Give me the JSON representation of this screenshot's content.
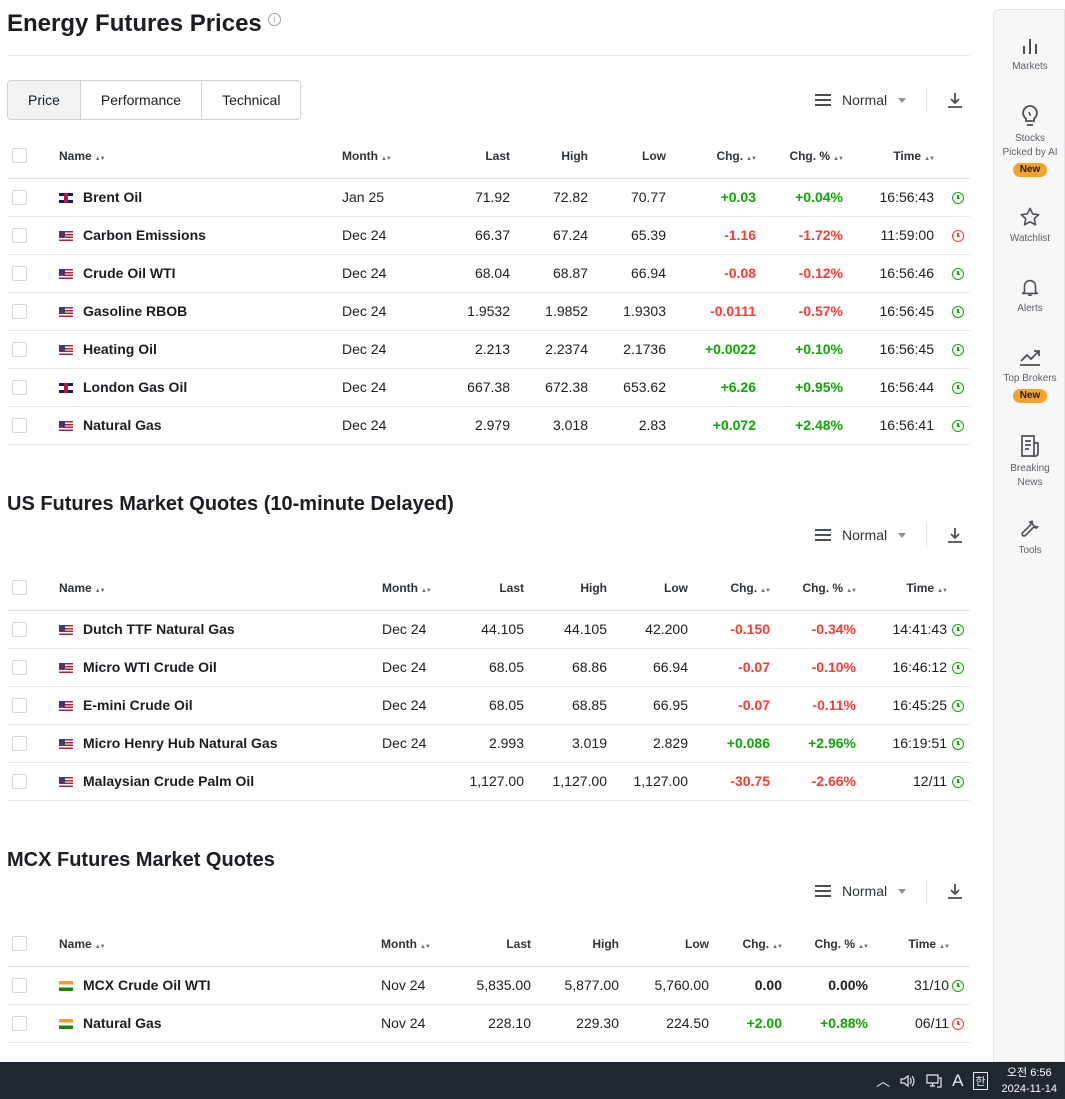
{
  "page_title": "Energy Futures Prices",
  "tabs": [
    {
      "label": "Price",
      "active": true
    },
    {
      "label": "Performance",
      "active": false
    },
    {
      "label": "Technical",
      "active": false
    }
  ],
  "view_label": "Normal",
  "columns": {
    "name": "Name",
    "month": "Month",
    "last": "Last",
    "high": "High",
    "low": "Low",
    "chg": "Chg.",
    "chg_pct": "Chg. %",
    "time": "Time"
  },
  "energy_table": [
    {
      "flag": "gb",
      "name": "Brent Oil",
      "month": "Jan 25",
      "last": "71.92",
      "high": "72.82",
      "low": "70.77",
      "chg": "+0.03",
      "chg_pct": "+0.04%",
      "time": "16:56:43",
      "dir": "pos",
      "status": "open"
    },
    {
      "flag": "us",
      "name": "Carbon Emissions",
      "month": "Dec 24",
      "last": "66.37",
      "high": "67.24",
      "low": "65.39",
      "chg": "-1.16",
      "chg_pct": "-1.72%",
      "time": "11:59:00",
      "dir": "neg",
      "status": "closed"
    },
    {
      "flag": "us",
      "name": "Crude Oil WTI",
      "month": "Dec 24",
      "last": "68.04",
      "high": "68.87",
      "low": "66.94",
      "chg": "-0.08",
      "chg_pct": "-0.12%",
      "time": "16:56:46",
      "dir": "neg",
      "status": "open"
    },
    {
      "flag": "us",
      "name": "Gasoline RBOB",
      "month": "Dec 24",
      "last": "1.9532",
      "high": "1.9852",
      "low": "1.9303",
      "chg": "-0.0111",
      "chg_pct": "-0.57%",
      "time": "16:56:45",
      "dir": "neg",
      "status": "open"
    },
    {
      "flag": "us",
      "name": "Heating Oil",
      "month": "Dec 24",
      "last": "2.213",
      "high": "2.2374",
      "low": "2.1736",
      "chg": "+0.0022",
      "chg_pct": "+0.10%",
      "time": "16:56:45",
      "dir": "pos",
      "status": "open"
    },
    {
      "flag": "gb",
      "name": "London Gas Oil",
      "month": "Dec 24",
      "last": "667.38",
      "high": "672.38",
      "low": "653.62",
      "chg": "+6.26",
      "chg_pct": "+0.95%",
      "time": "16:56:44",
      "dir": "pos",
      "status": "open"
    },
    {
      "flag": "us",
      "name": "Natural Gas",
      "month": "Dec 24",
      "last": "2.979",
      "high": "3.018",
      "low": "2.83",
      "chg": "+0.072",
      "chg_pct": "+2.48%",
      "time": "16:56:41",
      "dir": "pos",
      "status": "open"
    }
  ],
  "us_section_title": "US Futures Market Quotes (10-minute Delayed)",
  "us_table": [
    {
      "flag": "us",
      "name": "Dutch TTF Natural Gas",
      "month": "Dec 24",
      "last": "44.105",
      "high": "44.105",
      "low": "42.200",
      "chg": "-0.150",
      "chg_pct": "-0.34%",
      "time": "14:41:43",
      "dir": "neg",
      "status": "open"
    },
    {
      "flag": "us",
      "name": "Micro WTI Crude Oil",
      "month": "Dec 24",
      "last": "68.05",
      "high": "68.86",
      "low": "66.94",
      "chg": "-0.07",
      "chg_pct": "-0.10%",
      "time": "16:46:12",
      "dir": "neg",
      "status": "open"
    },
    {
      "flag": "us",
      "name": "E-mini Crude Oil",
      "month": "Dec 24",
      "last": "68.05",
      "high": "68.85",
      "low": "66.95",
      "chg": "-0.07",
      "chg_pct": "-0.11%",
      "time": "16:45:25",
      "dir": "neg",
      "status": "open"
    },
    {
      "flag": "us",
      "name": "Micro Henry Hub Natural Gas",
      "month": "Dec 24",
      "last": "2.993",
      "high": "3.019",
      "low": "2.829",
      "chg": "+0.086",
      "chg_pct": "+2.96%",
      "time": "16:19:51",
      "dir": "pos",
      "status": "open"
    },
    {
      "flag": "us",
      "name": "Malaysian Crude Palm Oil",
      "month": "",
      "last": "1,127.00",
      "high": "1,127.00",
      "low": "1,127.00",
      "chg": "-30.75",
      "chg_pct": "-2.66%",
      "time": "12/11",
      "dir": "neg",
      "status": "open"
    }
  ],
  "mcx_section_title": "MCX Futures Market Quotes",
  "mcx_table": [
    {
      "flag": "in",
      "name": "MCX Crude Oil WTI",
      "month": "Nov 24",
      "last": "5,835.00",
      "high": "5,877.00",
      "low": "5,760.00",
      "chg": "0.00",
      "chg_pct": "0.00%",
      "time": "31/10",
      "dir": "neu",
      "status": "open"
    },
    {
      "flag": "in",
      "name": "Natural Gas",
      "month": "Nov 24",
      "last": "228.10",
      "high": "229.30",
      "low": "224.50",
      "chg": "+2.00",
      "chg_pct": "+0.88%",
      "time": "06/11",
      "dir": "pos",
      "status": "closed"
    }
  ],
  "sidebar": {
    "markets": "Markets",
    "stocks_line1": "Stocks",
    "stocks_line2": "Picked by AI",
    "new_badge": "New",
    "watchlist": "Watchlist",
    "alerts": "Alerts",
    "top_brokers": "Top Brokers",
    "breaking_line1": "Breaking",
    "breaking_line2": "News",
    "tools": "Tools"
  },
  "taskbar": {
    "ime_a": "A",
    "ime_han": "한",
    "time": "오전 6:56",
    "date": "2024-11-14"
  },
  "colors": {
    "positive": "#0ea600",
    "negative": "#ff3a35",
    "badge": "#f7a22a"
  }
}
